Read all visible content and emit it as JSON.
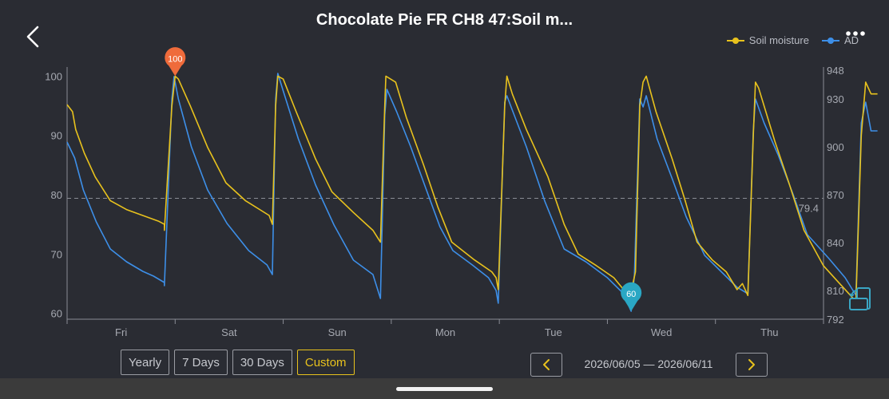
{
  "header": {
    "title": "Chocolate Pie FR CH8 47:Soil m..."
  },
  "legend": [
    {
      "name": "Soil moisture",
      "color": "#e8c21d"
    },
    {
      "name": "AD",
      "color": "#3d8fe8"
    }
  ],
  "chart_data": {
    "type": "line",
    "x_categories": [
      "Fri",
      "Sat",
      "Sun",
      "Mon",
      "Tue",
      "Wed",
      "Thu"
    ],
    "left_axis": {
      "ticks": [
        60,
        70,
        80,
        90,
        100
      ],
      "range": [
        59,
        101
      ]
    },
    "right_axis": {
      "ticks": [
        792,
        810,
        840,
        870,
        900,
        930,
        948
      ],
      "range": [
        792,
        948
      ]
    },
    "series": [
      {
        "name": "Soil moisture",
        "color": "#e8c21d",
        "axis": "left",
        "points": [
          [
            0,
            95.2
          ],
          [
            0.05,
            94
          ],
          [
            0.08,
            91
          ],
          [
            0.16,
            87
          ],
          [
            0.26,
            83
          ],
          [
            0.4,
            79
          ],
          [
            0.55,
            77.5
          ],
          [
            0.7,
            76.5
          ],
          [
            0.85,
            75.5
          ],
          [
            0.9,
            75
          ],
          [
            0.9,
            74
          ],
          [
            0.97,
            95
          ],
          [
            1.0,
            100
          ],
          [
            1.03,
            99.5
          ],
          [
            1.14,
            95
          ],
          [
            1.3,
            88
          ],
          [
            1.47,
            82
          ],
          [
            1.65,
            79
          ],
          [
            1.87,
            76.5
          ],
          [
            1.9,
            75
          ],
          [
            1.93,
            95
          ],
          [
            1.95,
            100
          ],
          [
            2.0,
            99.5
          ],
          [
            2.12,
            94
          ],
          [
            2.3,
            86
          ],
          [
            2.45,
            80.5
          ],
          [
            2.65,
            77
          ],
          [
            2.83,
            74
          ],
          [
            2.9,
            72
          ],
          [
            2.94,
            95
          ],
          [
            2.95,
            100
          ],
          [
            3.04,
            99
          ],
          [
            3.14,
            93
          ],
          [
            3.3,
            85
          ],
          [
            3.43,
            78
          ],
          [
            3.56,
            72
          ],
          [
            3.77,
            69
          ],
          [
            3.93,
            67
          ],
          [
            3.97,
            66
          ],
          [
            3.99,
            64
          ],
          [
            4.05,
            95
          ],
          [
            4.07,
            100
          ],
          [
            4.12,
            97
          ],
          [
            4.25,
            91
          ],
          [
            4.45,
            83
          ],
          [
            4.6,
            75
          ],
          [
            4.73,
            70
          ],
          [
            4.9,
            68
          ],
          [
            5.06,
            66
          ],
          [
            5.15,
            64
          ],
          [
            5.2,
            62
          ],
          [
            5.26,
            67
          ],
          [
            5.3,
            95
          ],
          [
            5.33,
            99
          ],
          [
            5.36,
            100
          ],
          [
            5.45,
            94
          ],
          [
            5.6,
            86
          ],
          [
            5.72,
            79
          ],
          [
            5.83,
            72
          ],
          [
            5.97,
            69
          ],
          [
            6.1,
            67
          ],
          [
            6.2,
            64
          ],
          [
            6.25,
            65
          ],
          [
            6.3,
            63
          ],
          [
            6.35,
            90
          ],
          [
            6.37,
            99
          ],
          [
            6.4,
            98
          ],
          [
            6.55,
            89
          ],
          [
            6.68,
            82
          ],
          [
            6.82,
            74
          ],
          [
            7.0,
            68
          ],
          [
            7.15,
            65
          ],
          [
            7.3,
            62
          ],
          [
            7.35,
            90
          ],
          [
            7.39,
            99
          ],
          [
            7.44,
            97
          ],
          [
            7.5,
            97
          ]
        ]
      },
      {
        "name": "AD",
        "color": "#3d8fe8",
        "axis": "right",
        "points": [
          [
            0,
            903
          ],
          [
            0.07,
            893
          ],
          [
            0.15,
            873
          ],
          [
            0.27,
            853
          ],
          [
            0.4,
            836
          ],
          [
            0.55,
            828
          ],
          [
            0.7,
            822
          ],
          [
            0.8,
            819
          ],
          [
            0.9,
            815
          ],
          [
            0.9,
            813
          ],
          [
            0.97,
            930
          ],
          [
            0.99,
            944
          ],
          [
            1.03,
            930
          ],
          [
            1.15,
            900
          ],
          [
            1.3,
            873
          ],
          [
            1.48,
            852
          ],
          [
            1.68,
            835
          ],
          [
            1.85,
            826
          ],
          [
            1.9,
            820
          ],
          [
            1.93,
            930
          ],
          [
            1.95,
            946
          ],
          [
            2.0,
            935
          ],
          [
            2.14,
            905
          ],
          [
            2.3,
            876
          ],
          [
            2.47,
            851
          ],
          [
            2.65,
            829
          ],
          [
            2.83,
            820
          ],
          [
            2.9,
            805
          ],
          [
            2.94,
            920
          ],
          [
            2.96,
            936
          ],
          [
            3.05,
            922
          ],
          [
            3.18,
            900
          ],
          [
            3.32,
            874
          ],
          [
            3.45,
            850
          ],
          [
            3.57,
            835
          ],
          [
            3.75,
            826
          ],
          [
            3.9,
            818
          ],
          [
            3.97,
            810
          ],
          [
            3.99,
            802
          ],
          [
            4.05,
            928
          ],
          [
            4.07,
            932
          ],
          [
            4.12,
            923
          ],
          [
            4.25,
            900
          ],
          [
            4.42,
            866
          ],
          [
            4.6,
            836
          ],
          [
            4.8,
            828
          ],
          [
            5.0,
            818
          ],
          [
            5.15,
            808
          ],
          [
            5.2,
            800
          ],
          [
            5.22,
            797
          ],
          [
            5.25,
            820
          ],
          [
            5.3,
            930
          ],
          [
            5.33,
            925
          ],
          [
            5.36,
            932
          ],
          [
            5.46,
            905
          ],
          [
            5.6,
            880
          ],
          [
            5.73,
            856
          ],
          [
            5.9,
            832
          ],
          [
            6.05,
            822
          ],
          [
            6.2,
            812
          ],
          [
            6.3,
            808
          ],
          [
            6.35,
            910
          ],
          [
            6.37,
            930
          ],
          [
            6.45,
            915
          ],
          [
            6.58,
            895
          ],
          [
            6.72,
            870
          ],
          [
            6.85,
            845
          ],
          [
            7.05,
            830
          ],
          [
            7.2,
            818
          ],
          [
            7.3,
            807
          ],
          [
            7.35,
            915
          ],
          [
            7.39,
            928
          ],
          [
            7.44,
            910
          ],
          [
            7.5,
            910
          ]
        ]
      }
    ],
    "reference_line": {
      "value": 79.4,
      "label": "79.4",
      "axis": "left",
      "style": "dashed"
    },
    "markers": [
      {
        "label": "100",
        "x": 1.0,
        "y": 100,
        "axis": "left",
        "color": "#ef6b3b"
      },
      {
        "label": "60",
        "x": 5.22,
        "y": 797,
        "axis": "right",
        "color": "#2aa7c4"
      }
    ],
    "grid": "off",
    "legend_position": "top-right"
  },
  "controls": {
    "ranges": [
      {
        "label": "Yearly",
        "active": false
      },
      {
        "label": "7 Days",
        "active": false
      },
      {
        "label": "30 Days",
        "active": false
      },
      {
        "label": "Custom",
        "active": true
      }
    ],
    "date_range": "2026/06/05 — 2026/06/11"
  }
}
